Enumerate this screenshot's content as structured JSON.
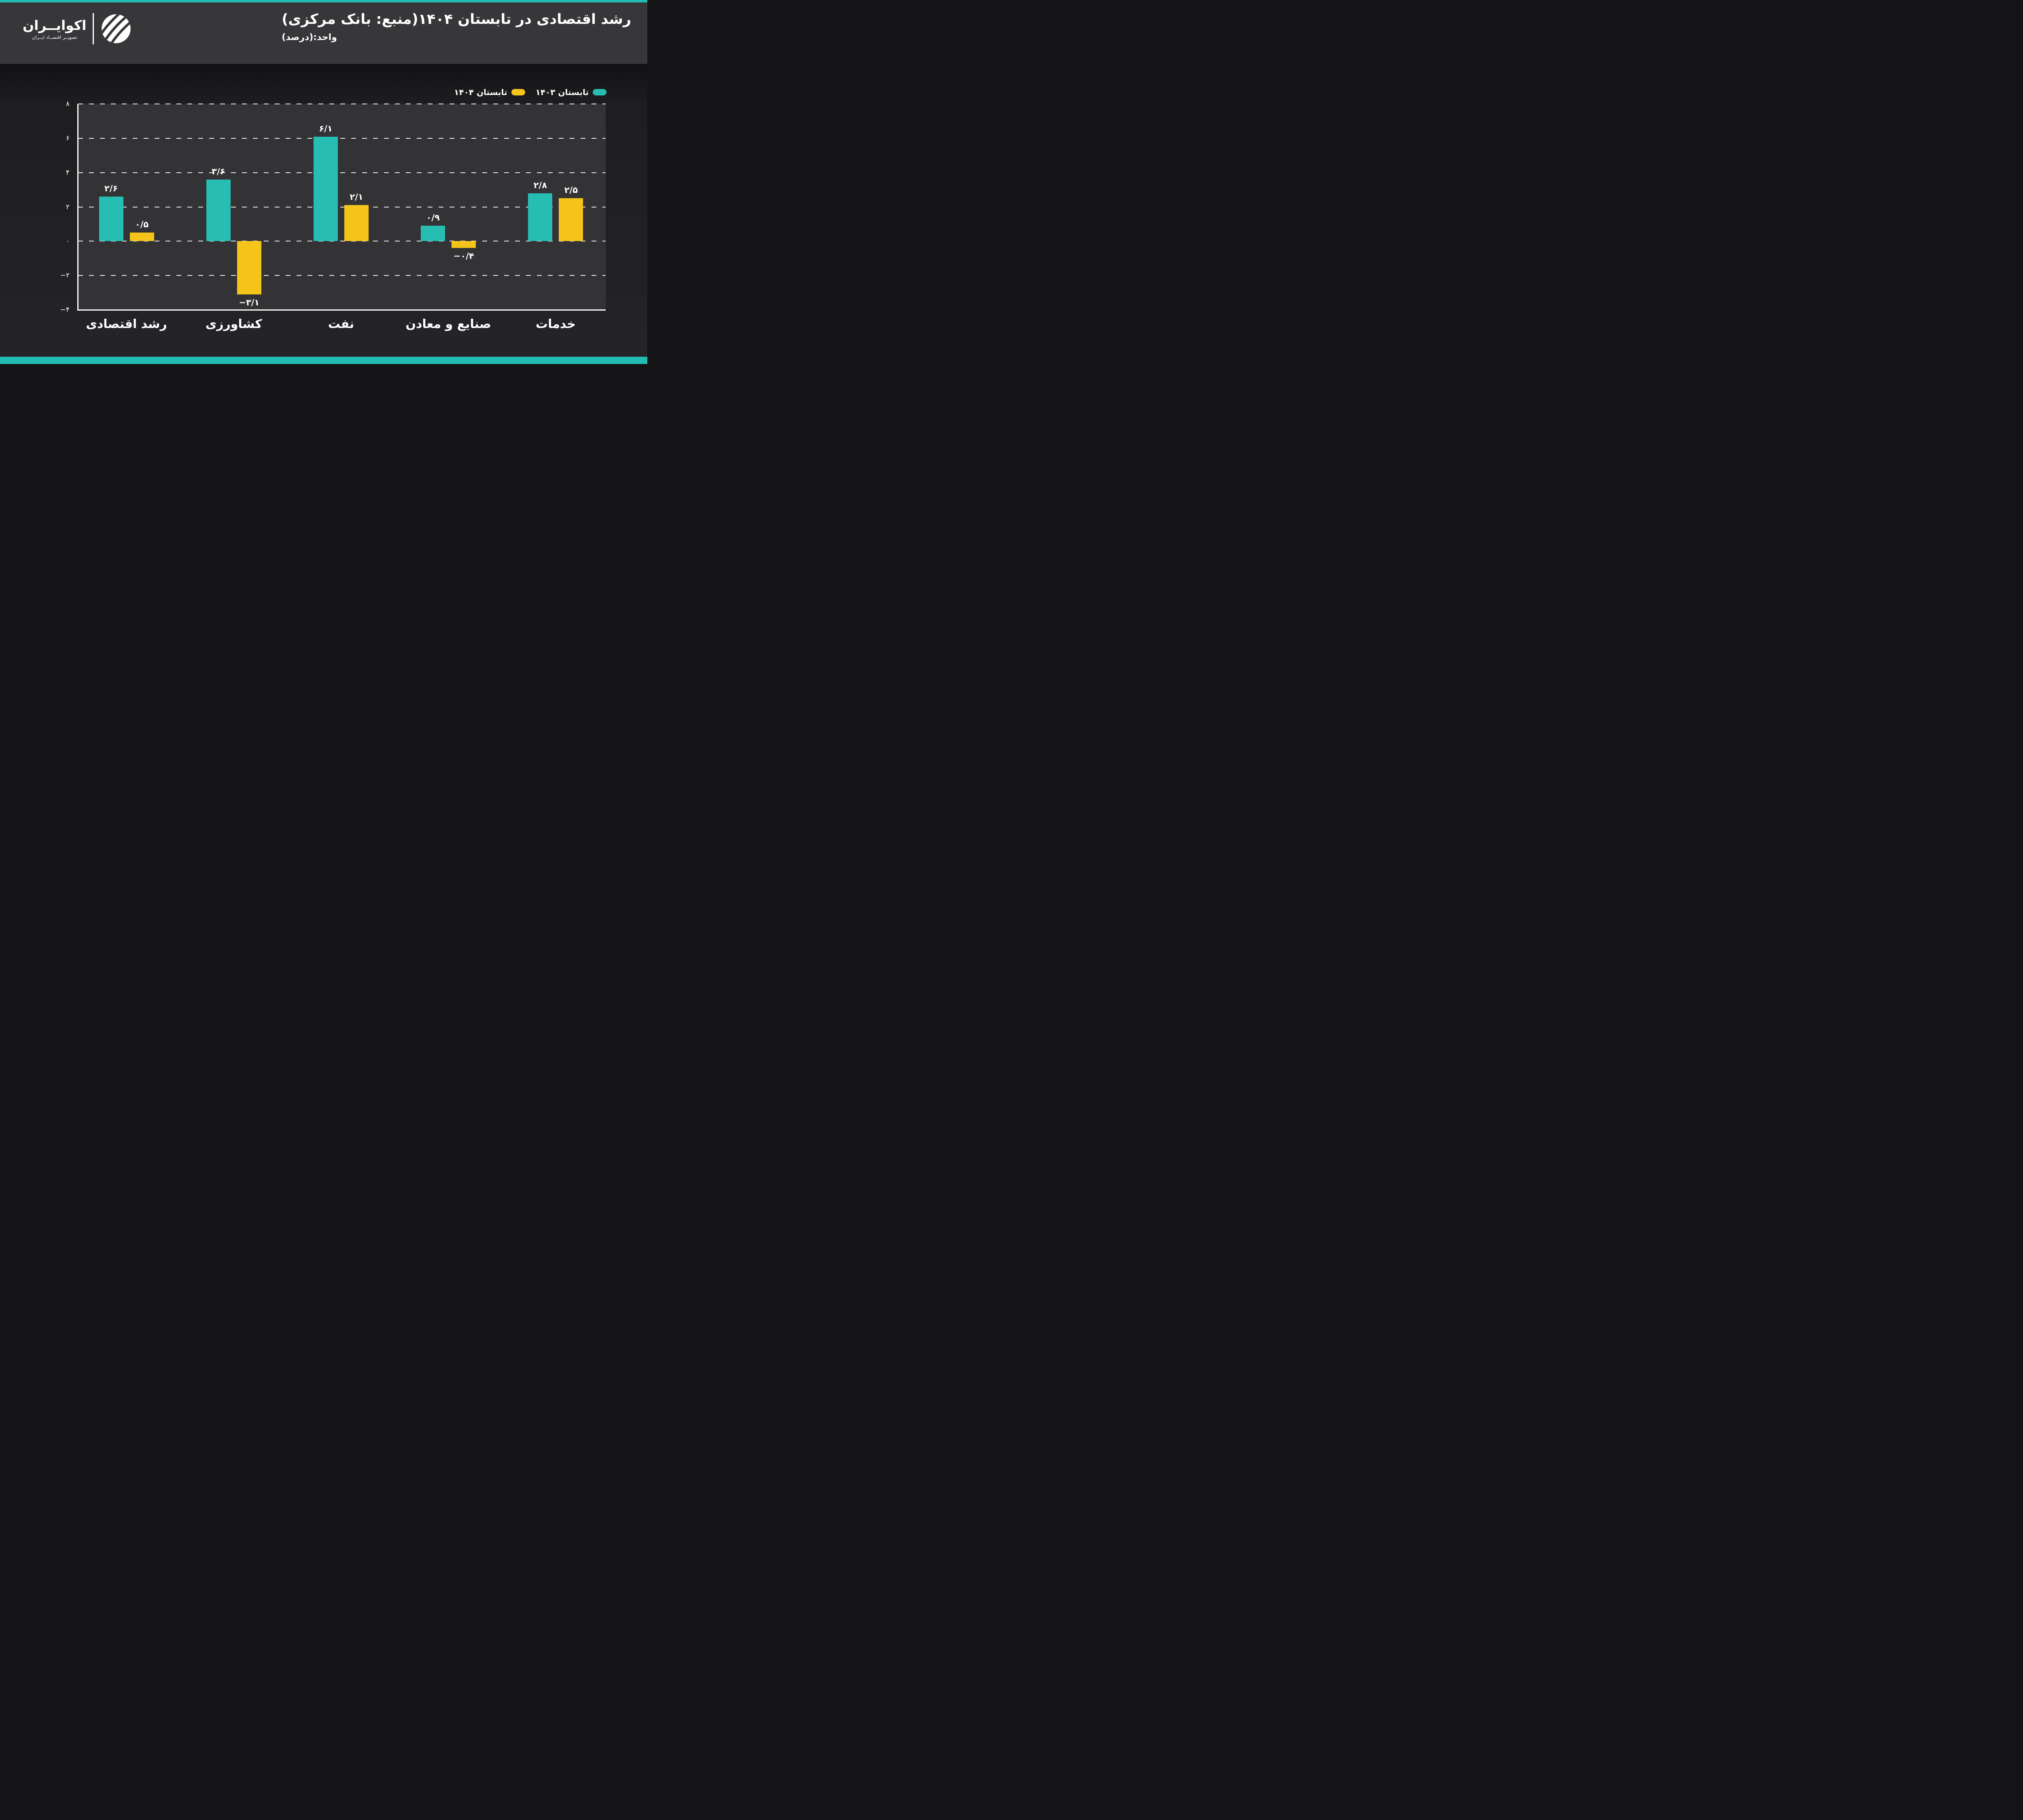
{
  "brand": {
    "name": "اکوایــران",
    "tagline": "تصویــر اقتصــاد ایــران"
  },
  "header": {
    "title": "رشد اقتصادی در تابستان ۱۴۰۴(منبع: بانک مرکزی)",
    "subtitle": "واحد:(درصد)"
  },
  "chart_data": {
    "type": "bar",
    "title": "رشد اقتصادی در تابستان ۱۴۰۴",
    "source": "بانک مرکزی",
    "unit": "درصد",
    "categories": [
      "رشد اقتصادی",
      "کشاورزی",
      "نفت",
      "صنایع و معادن",
      "خدمات"
    ],
    "series": [
      {
        "name": "تابستان ۱۴۰۳",
        "color": "#27BDB3",
        "values": [
          2.6,
          3.6,
          6.1,
          0.9,
          2.8
        ],
        "labels": [
          "۲/۶",
          "۳/۶",
          "۶/۱",
          "۰/۹",
          "۲/۸"
        ]
      },
      {
        "name": "تابستان ۱۴۰۴",
        "color": "#F4C41A",
        "values": [
          0.5,
          -3.1,
          2.1,
          -0.4,
          2.5
        ],
        "labels": [
          "۰/۵",
          "−۳/۱",
          "۲/۱",
          "−۰/۴",
          "۲/۵"
        ]
      }
    ],
    "ylim": [
      -4,
      8
    ],
    "yticks": [
      {
        "v": 8,
        "label": "۸"
      },
      {
        "v": 6,
        "label": "۶"
      },
      {
        "v": 4,
        "label": "۴"
      },
      {
        "v": 2,
        "label": "۲"
      },
      {
        "v": 0,
        "label": "۰"
      },
      {
        "v": -2,
        "label": "−۲"
      },
      {
        "v": -4,
        "label": "−۴"
      }
    ],
    "grid": "dashed-horizontal",
    "legend_position": "top-right"
  },
  "colors": {
    "accent_teal": "#27BDB3",
    "accent_yellow": "#F4C41A",
    "header_bg": "#37373A",
    "plot_bg": "#333336",
    "page_bg": "#232327",
    "text": "#FFFFFF"
  }
}
